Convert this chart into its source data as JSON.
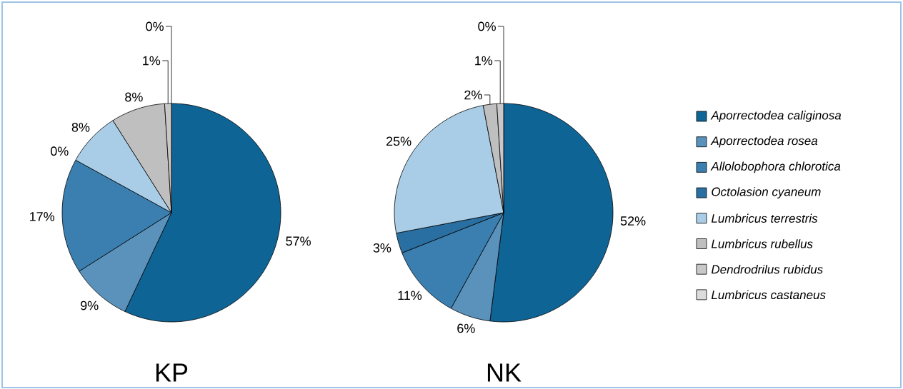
{
  "chart_data": [
    {
      "type": "pie",
      "title": "KP",
      "categories": [
        null,
        null,
        null,
        null,
        null,
        null,
        null,
        null
      ],
      "values": [
        57,
        9,
        17,
        0,
        8,
        8,
        1,
        0
      ],
      "value_labels": [
        "57%",
        "9%",
        "17%",
        "0%",
        "8%",
        "8%",
        "1%",
        "0%"
      ],
      "colors": [
        "#0f6496",
        "#5b92bc",
        "#3a7fb0",
        "#2a6fa2",
        "#a9cde6",
        "#bfbfbf",
        "#c8c8c8",
        "#dcdcdc"
      ]
    },
    {
      "type": "pie",
      "title": "NK",
      "legend": "right",
      "categories": [
        "Aporrectodea caliginosa",
        "Aporrectodea rosea",
        "Allolobophora chlorotica",
        "Octolasion cyaneum",
        "Lumbricus terrestris",
        "Lumbricus rubellus",
        "Dendrodrilus rubidus",
        "Lumbricus castaneus"
      ],
      "values": [
        52,
        6,
        11,
        3,
        25,
        2,
        1,
        0
      ],
      "value_labels": [
        "52%",
        "6%",
        "11%",
        "3%",
        "25%",
        "2%",
        "1%",
        "0%"
      ],
      "colors": [
        "#0f6496",
        "#5b92bc",
        "#3a7fb0",
        "#2a6fa2",
        "#a9cde6",
        "#bfbfbf",
        "#c8c8c8",
        "#dcdcdc"
      ]
    }
  ]
}
